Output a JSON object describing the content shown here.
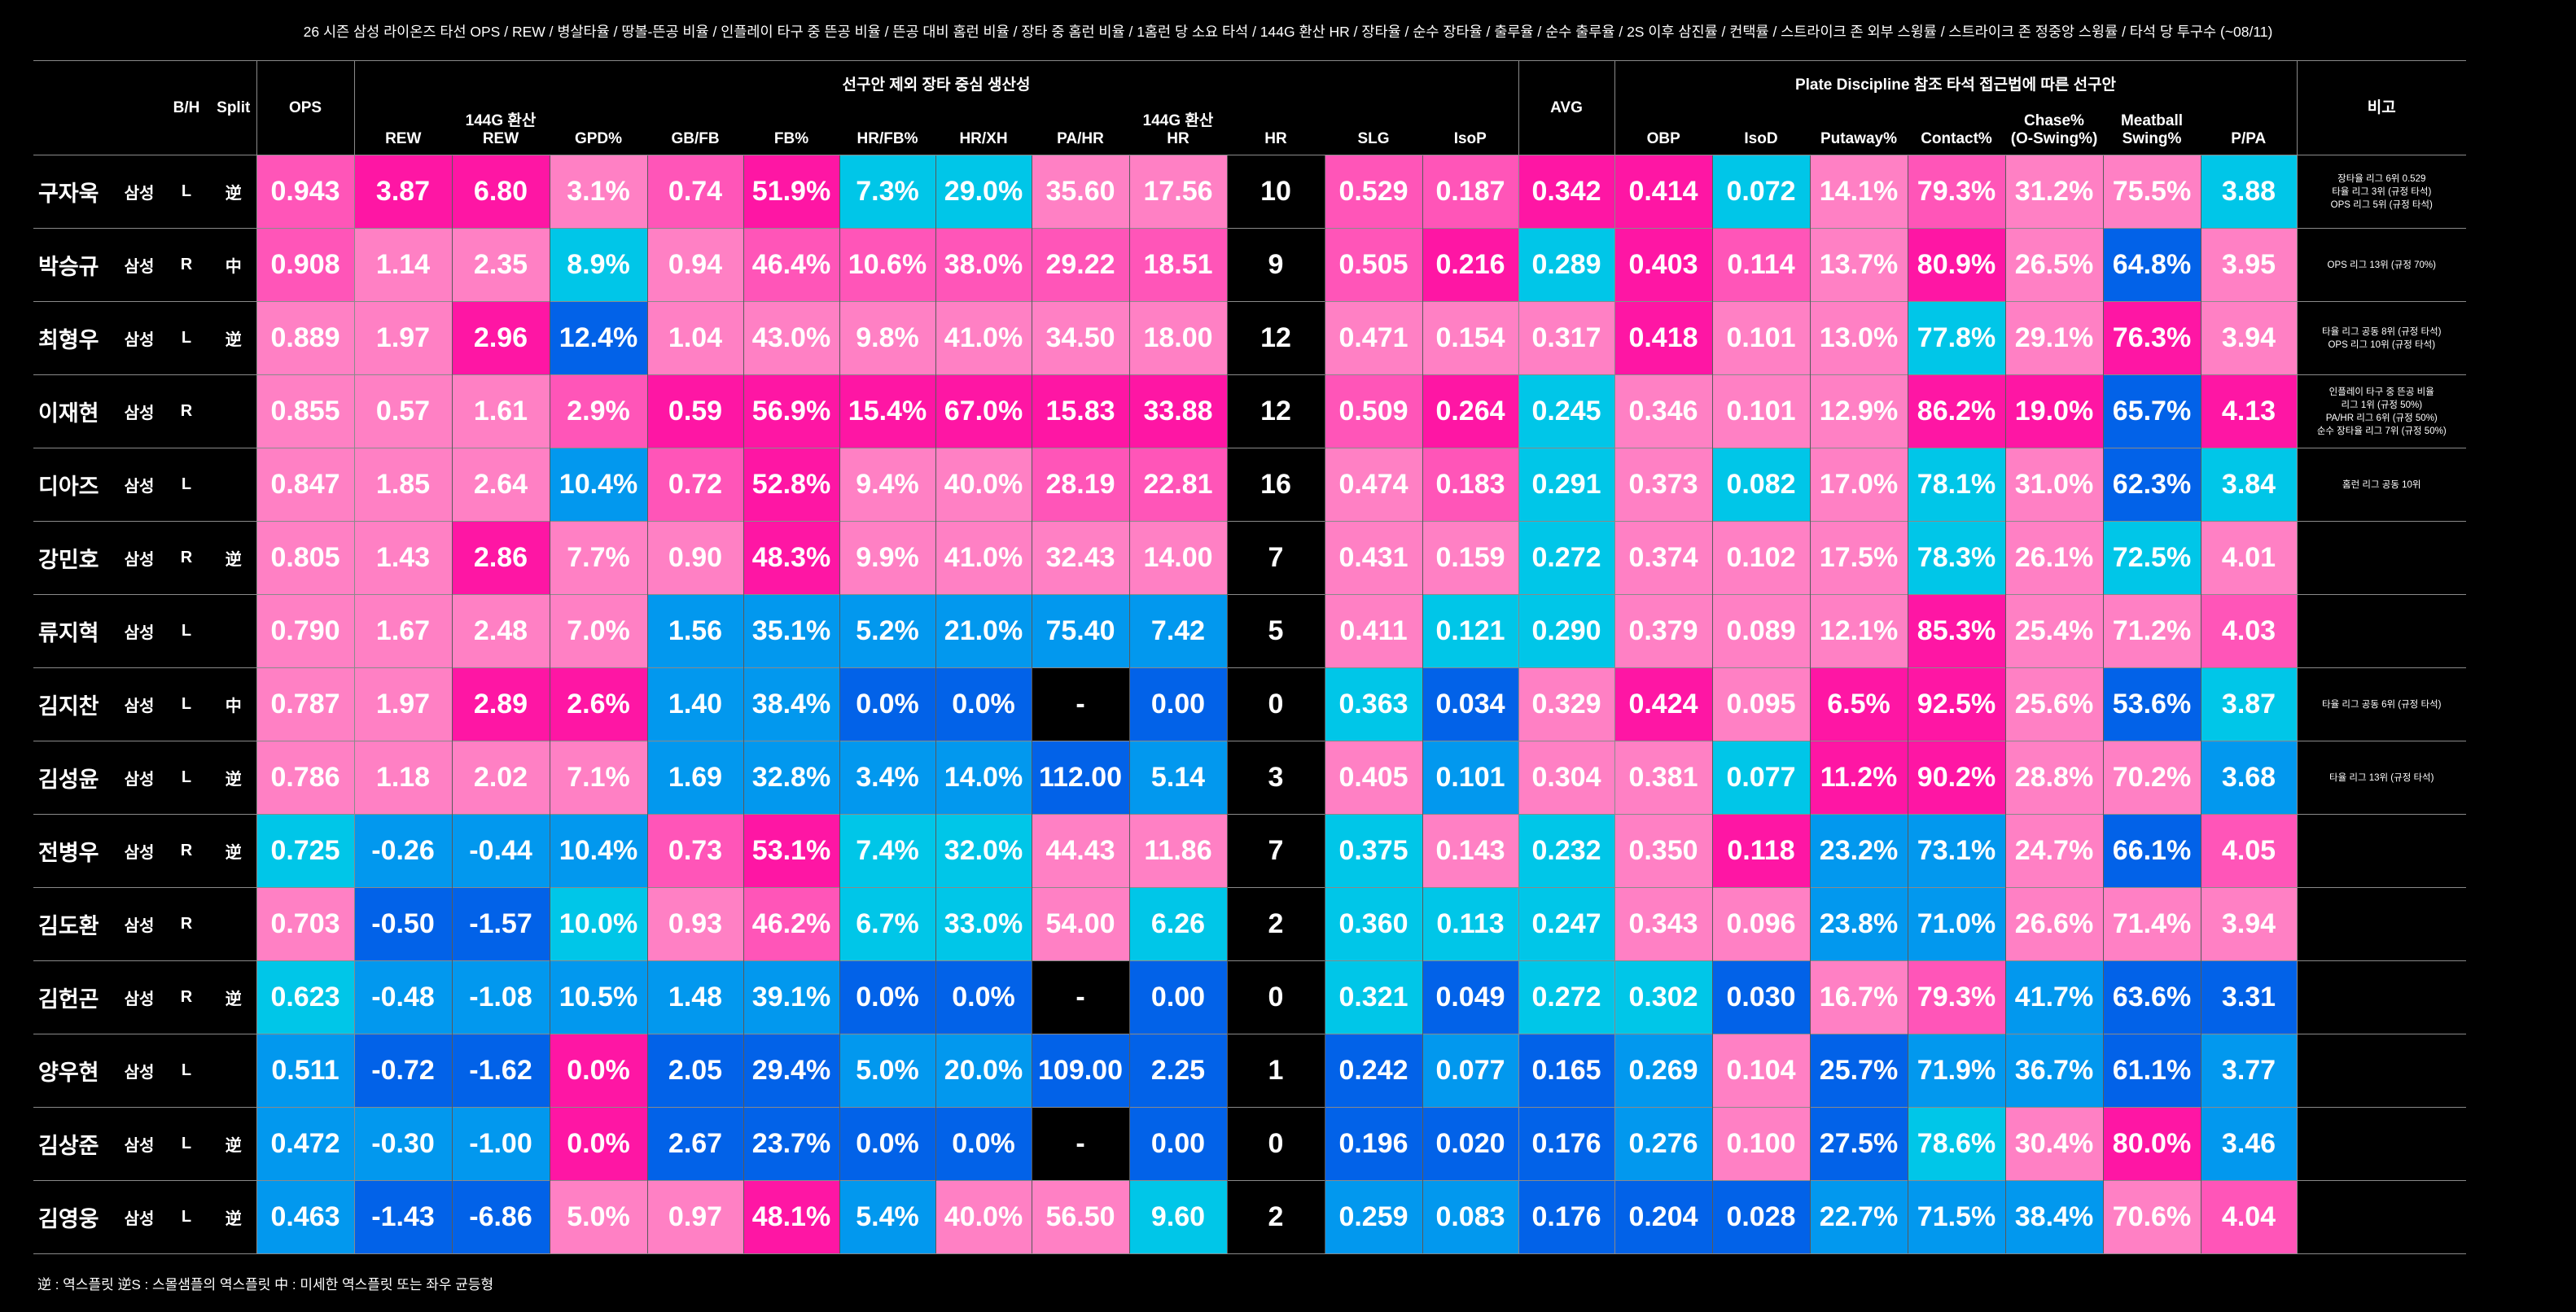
{
  "title": "26 시즌 삼성 라이온즈 타선 OPS / REW / 병살타율 / 땅볼-뜬공 비율 / 인플레이 타구 중 뜬공 비율 / 뜬공 대비 홈런 비율 / 장타 중 홈런 비율 / 1홈런 당 소요 타석 / 144G 환산 HR / 장타율 / 순수 장타율 / 출루율 / 순수 출루율 / 2S 이후 삼진률 / 컨택률 / 스트라이크 존 외부 스윙률 / 스트라이크 존 정중앙 스윙률 / 타석 당 투구수 (~08/11)",
  "groups": {
    "power": "선구안 제외 장타 중심 생산성",
    "discipline": "Plate Discipline 참조 타석 접근법에 따른 선구안"
  },
  "headers": {
    "bh": "B/H",
    "split": "Split",
    "ops": "OPS",
    "avg": "AVG",
    "note": "비고",
    "power_cols": [
      "REW",
      "144G 환산\nREW",
      "GPD%",
      "GB/FB",
      "FB%",
      "HR/FB%",
      "HR/XH",
      "PA/HR",
      "144G 환산\nHR",
      "HR",
      "SLG",
      "IsoP"
    ],
    "disc_cols": [
      "OBP",
      "IsoD",
      "Putaway%",
      "Contact%",
      "Chase%\n(O-Swing%)",
      "Meatball\nSwing%",
      "P/PA"
    ]
  },
  "palette": {
    "p1": "#ff80c4",
    "p2": "#ff55b8",
    "p3": "#fe16a4",
    "b1": "#00c6e8",
    "b2": "#0298ee",
    "b3": "#0262e8",
    "k": "#000000"
  },
  "rows": [
    {
      "name": "구자욱",
      "team": "삼성",
      "bh": "L",
      "split": "逆",
      "vals": [
        "0.943",
        "3.87",
        "6.80",
        "3.1%",
        "0.74",
        "51.9%",
        "7.3%",
        "29.0%",
        "35.60",
        "17.56",
        "10",
        "0.529",
        "0.187",
        "0.342",
        "0.414",
        "0.072",
        "14.1%",
        "79.3%",
        "31.2%",
        "75.5%",
        "3.88"
      ],
      "colors": [
        "p2",
        "p3",
        "p3",
        "p1",
        "p2",
        "p3",
        "b1",
        "b1",
        "p1",
        "p1",
        "k",
        "p2",
        "p2",
        "p3",
        "p3",
        "b1",
        "p1",
        "p2",
        "p1",
        "p1",
        "b1"
      ],
      "note": [
        "장타율 리그 6위 0.529",
        "타율 리그 3위 (규정 타석)",
        "OPS 리그 5위 (규정 타석)"
      ]
    },
    {
      "name": "박승규",
      "team": "삼성",
      "bh": "R",
      "split": "中",
      "vals": [
        "0.908",
        "1.14",
        "2.35",
        "8.9%",
        "0.94",
        "46.4%",
        "10.6%",
        "38.0%",
        "29.22",
        "18.51",
        "9",
        "0.505",
        "0.216",
        "0.289",
        "0.403",
        "0.114",
        "13.7%",
        "80.9%",
        "26.5%",
        "64.8%",
        "3.95"
      ],
      "colors": [
        "p2",
        "p1",
        "p1",
        "b1",
        "p1",
        "p2",
        "p2",
        "p2",
        "p2",
        "p2",
        "k",
        "p2",
        "p3",
        "b1",
        "p3",
        "p2",
        "p1",
        "p3",
        "p1",
        "b3",
        "p1"
      ],
      "note": [
        "OPS 리그 13위 (규정 70%)"
      ]
    },
    {
      "name": "최형우",
      "team": "삼성",
      "bh": "L",
      "split": "逆",
      "vals": [
        "0.889",
        "1.97",
        "2.96",
        "12.4%",
        "1.04",
        "43.0%",
        "9.8%",
        "41.0%",
        "34.50",
        "18.00",
        "12",
        "0.471",
        "0.154",
        "0.317",
        "0.418",
        "0.101",
        "13.0%",
        "77.8%",
        "29.1%",
        "76.3%",
        "3.94"
      ],
      "colors": [
        "p1",
        "p1",
        "p3",
        "b3",
        "p1",
        "p1",
        "p1",
        "p1",
        "p1",
        "p1",
        "k",
        "p1",
        "p1",
        "p1",
        "p3",
        "p1",
        "p1",
        "b1",
        "p1",
        "p3",
        "p1"
      ],
      "note": [
        "타율 리그 공동 8위 (규정 타석)",
        "OPS 리그 10위 (규정 타석)"
      ]
    },
    {
      "name": "이재현",
      "team": "삼성",
      "bh": "R",
      "split": "",
      "vals": [
        "0.855",
        "0.57",
        "1.61",
        "2.9%",
        "0.59",
        "56.9%",
        "15.4%",
        "67.0%",
        "15.83",
        "33.88",
        "12",
        "0.509",
        "0.264",
        "0.245",
        "0.346",
        "0.101",
        "12.9%",
        "86.2%",
        "19.0%",
        "65.7%",
        "4.13"
      ],
      "colors": [
        "p1",
        "p1",
        "p1",
        "p2",
        "p3",
        "p3",
        "p3",
        "p3",
        "p3",
        "p3",
        "k",
        "p2",
        "p3",
        "b1",
        "p1",
        "p1",
        "p1",
        "p3",
        "p3",
        "b3",
        "p3"
      ],
      "note": [
        "인플레이 타구 중 뜬공 비율",
        "리그 1위 (규정 50%)",
        "PA/HR 리그 6위 (규정 50%)",
        "순수 장타율 리그 7위 (규정 50%)"
      ]
    },
    {
      "name": "디아즈",
      "team": "삼성",
      "bh": "L",
      "split": "",
      "vals": [
        "0.847",
        "1.85",
        "2.64",
        "10.4%",
        "0.72",
        "52.8%",
        "9.4%",
        "40.0%",
        "28.19",
        "22.81",
        "16",
        "0.474",
        "0.183",
        "0.291",
        "0.373",
        "0.082",
        "17.0%",
        "78.1%",
        "31.0%",
        "62.3%",
        "3.84"
      ],
      "colors": [
        "p1",
        "p1",
        "p1",
        "b2",
        "p2",
        "p3",
        "p1",
        "p1",
        "p2",
        "p2",
        "k",
        "p1",
        "p2",
        "b1",
        "p1",
        "b1",
        "p1",
        "b1",
        "p1",
        "b3",
        "b1"
      ],
      "note": [
        "홈런 리그 공동 10위"
      ]
    },
    {
      "name": "강민호",
      "team": "삼성",
      "bh": "R",
      "split": "逆",
      "vals": [
        "0.805",
        "1.43",
        "2.86",
        "7.7%",
        "0.90",
        "48.3%",
        "9.9%",
        "41.0%",
        "32.43",
        "14.00",
        "7",
        "0.431",
        "0.159",
        "0.272",
        "0.374",
        "0.102",
        "17.5%",
        "78.3%",
        "26.1%",
        "72.5%",
        "4.01"
      ],
      "colors": [
        "p1",
        "p1",
        "p3",
        "p1",
        "p1",
        "p3",
        "p1",
        "p1",
        "p1",
        "p1",
        "k",
        "p1",
        "p1",
        "b1",
        "p1",
        "p1",
        "p1",
        "b1",
        "p1",
        "b1",
        "p1"
      ],
      "note": []
    },
    {
      "name": "류지혁",
      "team": "삼성",
      "bh": "L",
      "split": "",
      "vals": [
        "0.790",
        "1.67",
        "2.48",
        "7.0%",
        "1.56",
        "35.1%",
        "5.2%",
        "21.0%",
        "75.40",
        "7.42",
        "5",
        "0.411",
        "0.121",
        "0.290",
        "0.379",
        "0.089",
        "12.1%",
        "85.3%",
        "25.4%",
        "71.2%",
        "4.03"
      ],
      "colors": [
        "p1",
        "p1",
        "p1",
        "p1",
        "b2",
        "b2",
        "b2",
        "b2",
        "b2",
        "b2",
        "k",
        "p1",
        "b1",
        "b1",
        "p1",
        "p1",
        "p1",
        "p3",
        "p1",
        "p1",
        "p2"
      ],
      "note": []
    },
    {
      "name": "김지찬",
      "team": "삼성",
      "bh": "L",
      "split": "中",
      "vals": [
        "0.787",
        "1.97",
        "2.89",
        "2.6%",
        "1.40",
        "38.4%",
        "0.0%",
        "0.0%",
        "-",
        "0.00",
        "0",
        "0.363",
        "0.034",
        "0.329",
        "0.424",
        "0.095",
        "6.5%",
        "92.5%",
        "25.6%",
        "53.6%",
        "3.87"
      ],
      "colors": [
        "p1",
        "p1",
        "p3",
        "p3",
        "b2",
        "b2",
        "b3",
        "b3",
        "k",
        "b3",
        "k",
        "b1",
        "b3",
        "p1",
        "p3",
        "p1",
        "p3",
        "p3",
        "p1",
        "b3",
        "b1"
      ],
      "note": [
        "타율 리그 공동 6위 (규정 타석)"
      ]
    },
    {
      "name": "김성윤",
      "team": "삼성",
      "bh": "L",
      "split": "逆",
      "vals": [
        "0.786",
        "1.18",
        "2.02",
        "7.1%",
        "1.69",
        "32.8%",
        "3.4%",
        "14.0%",
        "112.00",
        "5.14",
        "3",
        "0.405",
        "0.101",
        "0.304",
        "0.381",
        "0.077",
        "11.2%",
        "90.2%",
        "28.8%",
        "70.2%",
        "3.68"
      ],
      "colors": [
        "p1",
        "p1",
        "p1",
        "p1",
        "b2",
        "b2",
        "b2",
        "b2",
        "b3",
        "b2",
        "k",
        "p1",
        "b2",
        "p1",
        "p1",
        "b1",
        "p3",
        "p3",
        "p1",
        "p1",
        "b2"
      ],
      "note": [
        "타율 리그 13위 (규정 타석)"
      ]
    },
    {
      "name": "전병우",
      "team": "삼성",
      "bh": "R",
      "split": "逆",
      "vals": [
        "0.725",
        "-0.26",
        "-0.44",
        "10.4%",
        "0.73",
        "53.1%",
        "7.4%",
        "32.0%",
        "44.43",
        "11.86",
        "7",
        "0.375",
        "0.143",
        "0.232",
        "0.350",
        "0.118",
        "23.2%",
        "73.1%",
        "24.7%",
        "66.1%",
        "4.05"
      ],
      "colors": [
        "b1",
        "b2",
        "b2",
        "b2",
        "p2",
        "p3",
        "b1",
        "b1",
        "p1",
        "p1",
        "k",
        "b1",
        "p1",
        "b1",
        "p1",
        "p3",
        "b2",
        "b2",
        "p1",
        "b3",
        "p2"
      ],
      "note": []
    },
    {
      "name": "김도환",
      "team": "삼성",
      "bh": "R",
      "split": "",
      "vals": [
        "0.703",
        "-0.50",
        "-1.57",
        "10.0%",
        "0.93",
        "46.2%",
        "6.7%",
        "33.0%",
        "54.00",
        "6.26",
        "2",
        "0.360",
        "0.113",
        "0.247",
        "0.343",
        "0.096",
        "23.8%",
        "71.0%",
        "26.6%",
        "71.4%",
        "3.94"
      ],
      "colors": [
        "p1",
        "b3",
        "b3",
        "b1",
        "p1",
        "p2",
        "b1",
        "b1",
        "p1",
        "b1",
        "k",
        "b1",
        "b1",
        "b1",
        "p1",
        "p1",
        "b2",
        "b2",
        "p1",
        "p1",
        "p1"
      ],
      "note": []
    },
    {
      "name": "김헌곤",
      "team": "삼성",
      "bh": "R",
      "split": "逆",
      "vals": [
        "0.623",
        "-0.48",
        "-1.08",
        "10.5%",
        "1.48",
        "39.1%",
        "0.0%",
        "0.0%",
        "-",
        "0.00",
        "0",
        "0.321",
        "0.049",
        "0.272",
        "0.302",
        "0.030",
        "16.7%",
        "79.3%",
        "41.7%",
        "63.6%",
        "3.31"
      ],
      "colors": [
        "b1",
        "b2",
        "b2",
        "b2",
        "b2",
        "b2",
        "b3",
        "b3",
        "k",
        "b3",
        "k",
        "b1",
        "b3",
        "b1",
        "b1",
        "b3",
        "p1",
        "p2",
        "b2",
        "b3",
        "b3"
      ],
      "note": []
    },
    {
      "name": "양우현",
      "team": "삼성",
      "bh": "L",
      "split": "",
      "vals": [
        "0.511",
        "-0.72",
        "-1.62",
        "0.0%",
        "2.05",
        "29.4%",
        "5.0%",
        "20.0%",
        "109.00",
        "2.25",
        "1",
        "0.242",
        "0.077",
        "0.165",
        "0.269",
        "0.104",
        "25.7%",
        "71.9%",
        "36.7%",
        "61.1%",
        "3.77"
      ],
      "colors": [
        "b2",
        "b3",
        "b3",
        "p3",
        "b3",
        "b3",
        "b2",
        "b2",
        "b3",
        "b3",
        "k",
        "b3",
        "b2",
        "b3",
        "b2",
        "p1",
        "b3",
        "b2",
        "b2",
        "b3",
        "b2"
      ],
      "note": []
    },
    {
      "name": "김상준",
      "team": "삼성",
      "bh": "L",
      "split": "逆",
      "vals": [
        "0.472",
        "-0.30",
        "-1.00",
        "0.0%",
        "2.67",
        "23.7%",
        "0.0%",
        "0.0%",
        "-",
        "0.00",
        "0",
        "0.196",
        "0.020",
        "0.176",
        "0.276",
        "0.100",
        "27.5%",
        "78.6%",
        "30.4%",
        "80.0%",
        "3.46"
      ],
      "colors": [
        "b2",
        "b2",
        "b2",
        "p3",
        "b3",
        "b3",
        "b3",
        "b3",
        "k",
        "b3",
        "k",
        "b3",
        "b3",
        "b3",
        "b2",
        "p1",
        "b3",
        "b1",
        "p1",
        "p3",
        "b2"
      ],
      "note": []
    },
    {
      "name": "김영웅",
      "team": "삼성",
      "bh": "L",
      "split": "逆",
      "vals": [
        "0.463",
        "-1.43",
        "-6.86",
        "5.0%",
        "0.97",
        "48.1%",
        "5.4%",
        "40.0%",
        "56.50",
        "9.60",
        "2",
        "0.259",
        "0.083",
        "0.176",
        "0.204",
        "0.028",
        "22.7%",
        "71.5%",
        "38.4%",
        "70.6%",
        "4.04"
      ],
      "colors": [
        "b2",
        "b3",
        "b3",
        "p1",
        "p1",
        "p3",
        "b2",
        "p1",
        "p1",
        "b1",
        "k",
        "b2",
        "b2",
        "b3",
        "b3",
        "b3",
        "b2",
        "b2",
        "b2",
        "p1",
        "p2"
      ],
      "note": []
    }
  ],
  "footnote": "逆 : 역스플릿   逆S : 스몰샘플의 역스플릿   中 : 미세한 역스플릿 또는 좌우 균등형"
}
